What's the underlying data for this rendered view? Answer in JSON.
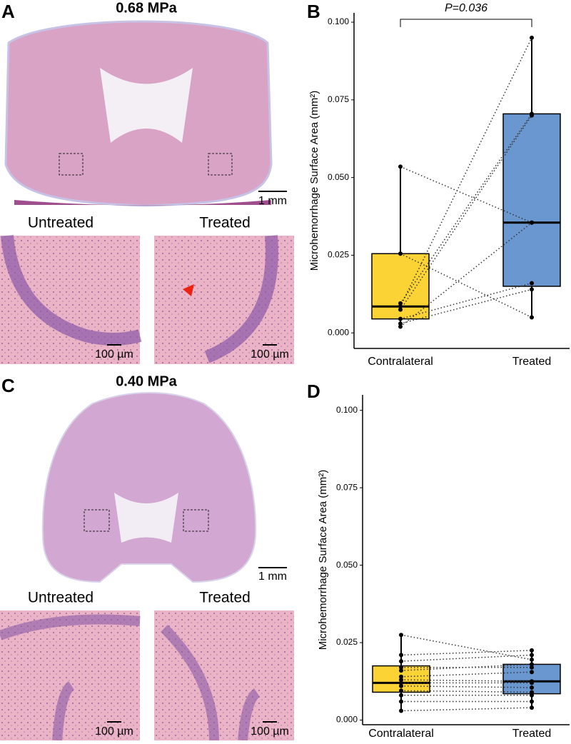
{
  "panels": [
    {
      "label": "A",
      "title": "0.68 MPa",
      "scale": "1 mm",
      "insets": [
        {
          "title": "Untreated",
          "scale": "100 µm"
        },
        {
          "title": "Treated",
          "scale": "100 µm"
        }
      ]
    },
    {
      "label": "C",
      "title": "0.40 MPa",
      "scale": "1 mm",
      "insets": [
        {
          "title": "Untreated",
          "scale": "100 µm"
        },
        {
          "title": "Treated",
          "scale": "100 µm"
        }
      ]
    }
  ],
  "chart_data": [
    {
      "type": "box",
      "panel_label": "B",
      "y_label": "Microhemorrhage Surface Area (mm²)",
      "annotation": "P=0.036",
      "categories": [
        "Contralateral",
        "Treated"
      ],
      "paired": true,
      "ylim": [
        -0.005,
        0.103
      ],
      "yticks": [
        {
          "value": 0,
          "label": "0.000"
        },
        {
          "value": 0.025,
          "label": "0.025"
        },
        {
          "value": 0.05,
          "label": "0.050"
        },
        {
          "value": 0.075,
          "label": "0.075"
        },
        {
          "value": 0.1,
          "label": "0.100"
        }
      ],
      "series": [
        {
          "name": "Contralateral",
          "color": "#fcd334",
          "stats": {
            "min": 0.002,
            "q1": 0.0045,
            "median": 0.0085,
            "q3": 0.0255,
            "max": 0.0535
          },
          "values": [
            0.0535,
            0.0255,
            0.0095,
            0.0085,
            0.0075,
            0.0045,
            0.003,
            0.002
          ]
        },
        {
          "name": "Treated",
          "color": "#6a97cf",
          "stats": {
            "min": 0.005,
            "q1": 0.015,
            "median": 0.0355,
            "q3": 0.0705,
            "max": 0.095
          },
          "values": [
            0.0355,
            0.005,
            0.0705,
            0.095,
            0.07,
            0.016,
            0.014,
            0.0355
          ]
        }
      ]
    },
    {
      "type": "box",
      "panel_label": "D",
      "y_label": "Microhemorrhage Surface Area (mm²)",
      "categories": [
        "Contralateral",
        "Treated"
      ],
      "paired": true,
      "ylim": [
        -0.0015,
        0.105
      ],
      "yticks": [
        {
          "value": 0,
          "label": "0.000"
        },
        {
          "value": 0.025,
          "label": "0.025"
        },
        {
          "value": 0.05,
          "label": "0.050"
        },
        {
          "value": 0.075,
          "label": "0.075"
        },
        {
          "value": 0.1,
          "label": "0.100"
        }
      ],
      "series": [
        {
          "name": "Contralateral",
          "color": "#fcd334",
          "stats": {
            "min": 0.003,
            "q1": 0.009,
            "median": 0.012,
            "q3": 0.0175,
            "max": 0.0275
          },
          "values": [
            0.0275,
            0.021,
            0.019,
            0.017,
            0.016,
            0.014,
            0.013,
            0.012,
            0.011,
            0.0095,
            0.008,
            0.006,
            0.003
          ]
        },
        {
          "name": "Treated",
          "color": "#6a97cf",
          "stats": {
            "min": 0.004,
            "q1": 0.0085,
            "median": 0.0125,
            "q3": 0.018,
            "max": 0.0225
          },
          "values": [
            0.0195,
            0.0225,
            0.021,
            0.017,
            0.018,
            0.0155,
            0.0125,
            0.012,
            0.0105,
            0.009,
            0.008,
            0.006,
            0.004
          ]
        }
      ]
    }
  ]
}
